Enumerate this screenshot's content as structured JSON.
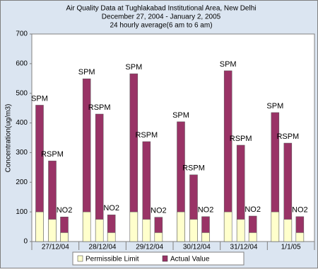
{
  "chart_data": {
    "type": "bar",
    "title": [
      "Air Quality Data at Tughlakabad Institutional Area, New Delhi",
      "December 27, 2004 - January 2, 2005",
      "24 hourly average(6 am to 6 am)"
    ],
    "y_label": "Concentration(ug/m3)",
    "categories": [
      "27/12/04",
      "28/12/04",
      "29/12/04",
      "30/12/04",
      "31/12/04",
      "1/1/05"
    ],
    "pollutants": [
      "SPM",
      "RSPM",
      "NO2"
    ],
    "series": [
      {
        "name": "Permissible Limit",
        "color": "#ffffcc",
        "values": [
          [
            100,
            75,
            30
          ],
          [
            100,
            75,
            30
          ],
          [
            100,
            75,
            30
          ],
          [
            100,
            75,
            30
          ],
          [
            100,
            75,
            30
          ],
          [
            100,
            75,
            30
          ]
        ]
      },
      {
        "name": "Actual Value",
        "color": "#993366",
        "values": [
          [
            460,
            272,
            83
          ],
          [
            549,
            430,
            90
          ],
          [
            566,
            337,
            82
          ],
          [
            404,
            225,
            84
          ],
          [
            576,
            325,
            86
          ],
          [
            435,
            332,
            84
          ]
        ]
      }
    ],
    "ylim": [
      0,
      700
    ],
    "yticks": [
      0,
      100,
      200,
      300,
      400,
      500,
      600,
      700
    ],
    "grid": false
  }
}
